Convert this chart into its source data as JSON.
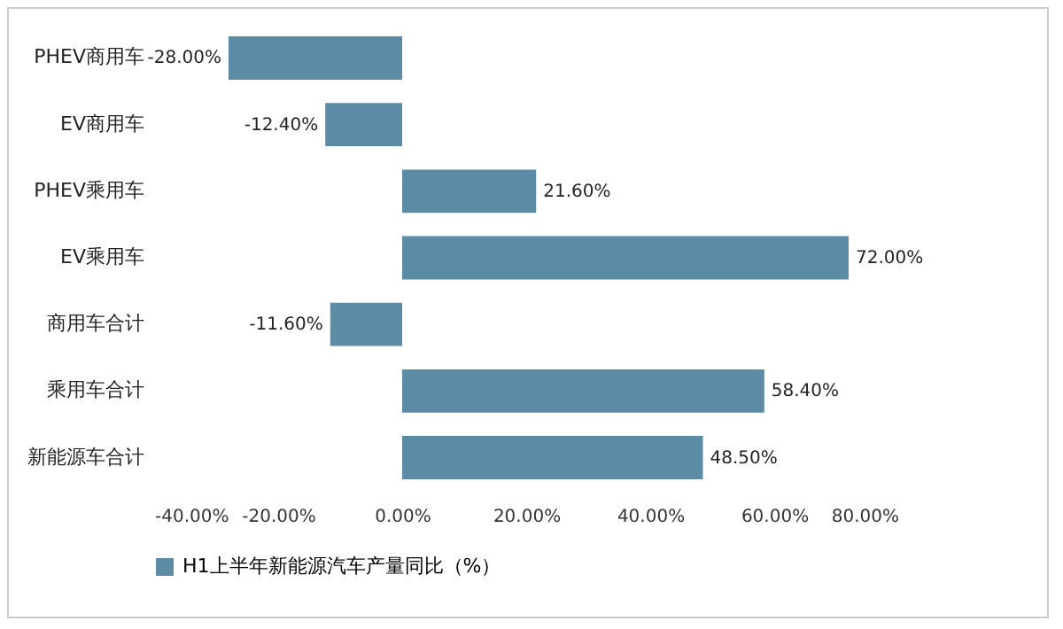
{
  "chart_data": {
    "type": "bar",
    "orientation": "horizontal",
    "categories": [
      "PHEV商用车",
      "EV商用车",
      "PHEV乘用车",
      "EV乘用车",
      "商用车合计",
      "乘用车合计",
      "新能源车合计"
    ],
    "series": [
      {
        "name": "H1上半年新能源汽车产量同比（%）",
        "color": "#5b8ba5",
        "values": [
          -28.0,
          -12.4,
          21.6,
          72.0,
          -11.6,
          58.4,
          48.5
        ],
        "value_labels": [
          "-28.00%",
          "-12.40%",
          "21.60%",
          "72.00%",
          "-11.60%",
          "58.40%",
          "48.50%"
        ]
      }
    ],
    "xlim": [
      -40,
      80
    ],
    "xticks": [
      {
        "value": -40,
        "label": "-40.00%"
      },
      {
        "value": -20,
        "label": "-20.00%"
      },
      {
        "value": 0,
        "label": "0.00%"
      },
      {
        "value": 20,
        "label": "20.00%"
      },
      {
        "value": 40,
        "label": "40.00%"
      },
      {
        "value": 60,
        "label": "60.00%"
      },
      {
        "value": 80,
        "label": "80.00%"
      }
    ],
    "grid": false,
    "legend": "bottom"
  }
}
